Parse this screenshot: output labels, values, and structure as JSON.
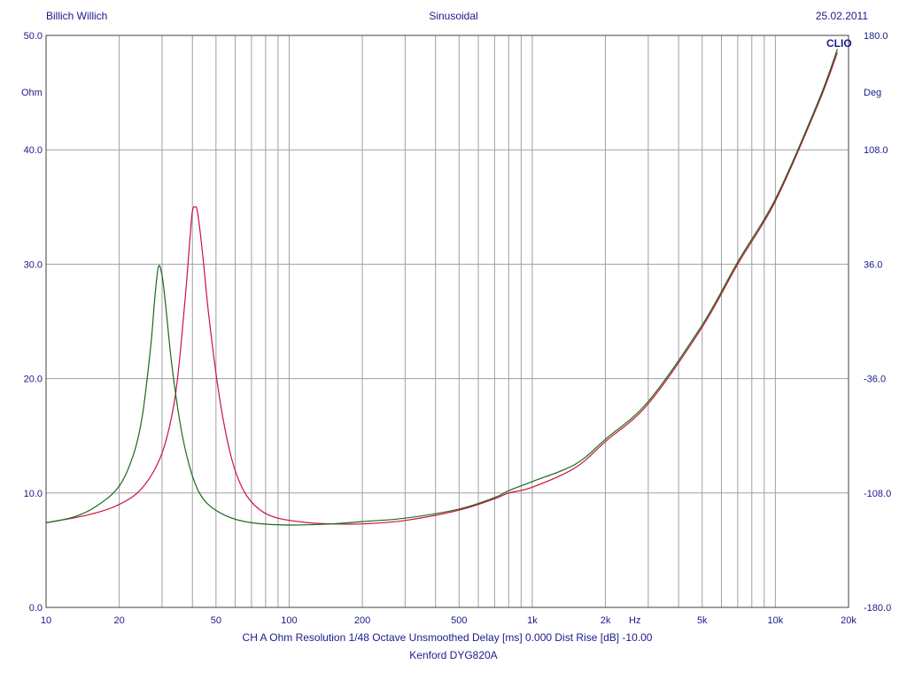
{
  "header": {
    "left": "Billich Willich",
    "center": "Sinusoidal",
    "right": "25.02.2011"
  },
  "footer": {
    "line1": "CH A   Ohm   Resolution 1/48 Octave   Unsmoothed   Delay [ms] 0.000   Dist Rise [dB] -10.00",
    "line2": "Kenford DYG820A"
  },
  "brand": "CLIO",
  "colors": {
    "grid": "#a0a0a0",
    "text": "#1a1a8c",
    "series1": "#cc1040",
    "series2": "#1a6a1a"
  },
  "chart_data": {
    "type": "line",
    "xscale": "log",
    "xlim": [
      10,
      20000
    ],
    "ylim": [
      0,
      50
    ],
    "y2lim": [
      -180,
      180
    ],
    "xticks": [
      {
        "v": 10,
        "label": "10"
      },
      {
        "v": 20,
        "label": "20"
      },
      {
        "v": 50,
        "label": "50"
      },
      {
        "v": 100,
        "label": "100"
      },
      {
        "v": 200,
        "label": "200"
      },
      {
        "v": 500,
        "label": "500"
      },
      {
        "v": 1000,
        "label": "1k"
      },
      {
        "v": 2000,
        "label": "2k"
      },
      {
        "v": 5000,
        "label": "5k"
      },
      {
        "v": 10000,
        "label": "10k"
      },
      {
        "v": 20000,
        "label": "20k"
      }
    ],
    "xunit": "Hz",
    "yticks": [
      "0.0",
      "10.0",
      "20.0",
      "30.0",
      "40.0",
      "50.0"
    ],
    "y2ticks": [
      "-180.0",
      "-108.0",
      "-36.0",
      "36.0",
      "108.0",
      "180.0"
    ],
    "ylabel": "Ohm",
    "y2label": "Deg",
    "grid": true,
    "series": [
      {
        "color": "#cc1040",
        "points": [
          [
            10,
            7.4
          ],
          [
            15,
            8.1
          ],
          [
            20,
            9.0
          ],
          [
            25,
            10.5
          ],
          [
            30,
            13.5
          ],
          [
            34,
            18.5
          ],
          [
            37,
            26
          ],
          [
            39,
            32
          ],
          [
            40,
            34.6
          ],
          [
            41,
            35.0
          ],
          [
            42,
            34.5
          ],
          [
            44,
            31
          ],
          [
            47,
            25
          ],
          [
            52,
            18
          ],
          [
            58,
            13
          ],
          [
            65,
            10.2
          ],
          [
            75,
            8.6
          ],
          [
            90,
            7.8
          ],
          [
            120,
            7.4
          ],
          [
            150,
            7.3
          ],
          [
            200,
            7.3
          ],
          [
            300,
            7.6
          ],
          [
            500,
            8.5
          ],
          [
            700,
            9.5
          ],
          [
            800,
            10.0
          ],
          [
            1000,
            10.5
          ],
          [
            1500,
            12.2
          ],
          [
            2000,
            14.5
          ],
          [
            3000,
            17.8
          ],
          [
            5000,
            24.5
          ],
          [
            7000,
            30.0
          ],
          [
            10000,
            35.5
          ],
          [
            15000,
            44.0
          ],
          [
            18000,
            48.5
          ]
        ]
      },
      {
        "color": "#1a6a1a",
        "points": [
          [
            10,
            7.4
          ],
          [
            13,
            7.9
          ],
          [
            16,
            8.8
          ],
          [
            20,
            10.6
          ],
          [
            23,
            13.5
          ],
          [
            25,
            17
          ],
          [
            27,
            23
          ],
          [
            28,
            27
          ],
          [
            29,
            29.8
          ],
          [
            30,
            29.0
          ],
          [
            31,
            26.5
          ],
          [
            33,
            21
          ],
          [
            36,
            15.5
          ],
          [
            40,
            11.5
          ],
          [
            45,
            9.3
          ],
          [
            55,
            8.0
          ],
          [
            70,
            7.4
          ],
          [
            100,
            7.2
          ],
          [
            150,
            7.3
          ],
          [
            200,
            7.5
          ],
          [
            300,
            7.8
          ],
          [
            500,
            8.6
          ],
          [
            700,
            9.6
          ],
          [
            800,
            10.2
          ],
          [
            1000,
            11.0
          ],
          [
            1500,
            12.5
          ],
          [
            2000,
            14.7
          ],
          [
            3000,
            18.0
          ],
          [
            5000,
            24.7
          ],
          [
            7000,
            30.2
          ],
          [
            10000,
            35.7
          ],
          [
            15000,
            44.2
          ],
          [
            18000,
            48.8
          ]
        ]
      }
    ]
  }
}
